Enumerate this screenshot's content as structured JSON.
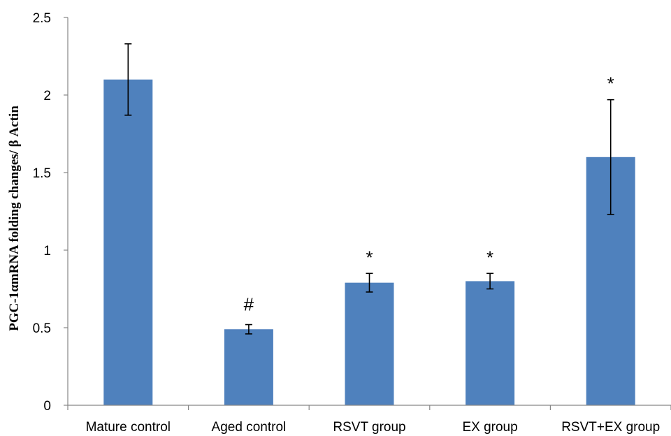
{
  "chart_data": {
    "type": "bar",
    "title": "",
    "xlabel": "",
    "ylabel": "PGC-1αmRNA folding changes/ β Actin",
    "categories": [
      "Mature control",
      "Aged control",
      "RSVT group",
      "EX group",
      "RSVT+EX group"
    ],
    "values": [
      2.1,
      0.49,
      0.79,
      0.8,
      1.6
    ],
    "error": [
      0.23,
      0.03,
      0.06,
      0.05,
      0.37
    ],
    "annotations": [
      "",
      "#",
      "*",
      "*",
      "*"
    ],
    "ylim": [
      0,
      2.5
    ],
    "yticks": [
      "0",
      "0.5",
      "1",
      "1.5",
      "2",
      "2.5"
    ],
    "grid": false,
    "legend": "none",
    "bar_color": "#4F81BD",
    "error_color": "#000000"
  }
}
